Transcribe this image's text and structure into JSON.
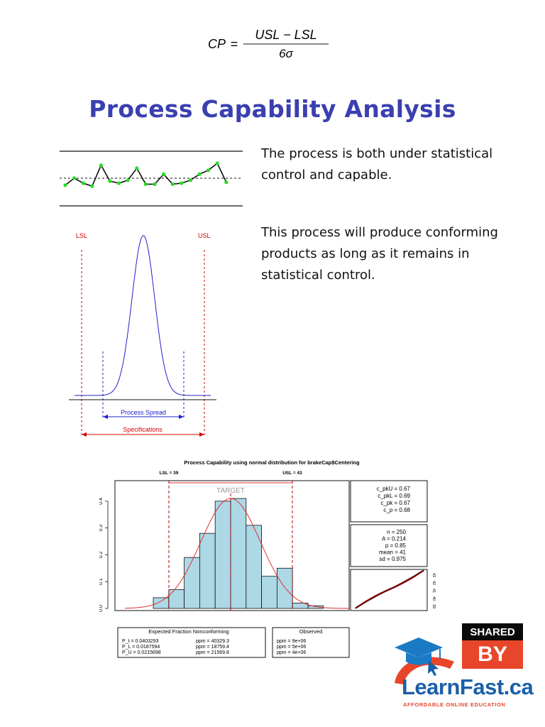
{
  "formula": {
    "lhs": "CP",
    "numerator": "USL − LSL",
    "denominator": "6σ"
  },
  "title": "Process Capability Analysis",
  "paragraphs": [
    "The process is both under statistical control and capable.",
    "This process will produce conforming products as long as it remains in statistical control."
  ],
  "control_chart": {
    "points": [
      0.35,
      0.7,
      0.45,
      0.3,
      1.35,
      0.55,
      0.45,
      0.6,
      1.2,
      0.4,
      0.4,
      0.9,
      0.4,
      0.45,
      0.6,
      0.9,
      1.1,
      1.45,
      0.5
    ]
  },
  "spec_diagram": {
    "lsl_label": "LSL",
    "usl_label": "USL",
    "spread_label": "Process Spread",
    "spec_label": "Specifications"
  },
  "capability_plot": {
    "title": "Process Capability using normal distribution for brakeCap$Centering",
    "lsl_label": "LSL = 39",
    "usl_label": "USL = 43",
    "target_label": "TARGET",
    "y_ticks": [
      "0.0",
      "0.1",
      "0.2",
      "0.3",
      "0.4"
    ],
    "indices": [
      "c_pkU = 0.67",
      "c_pkL = 0.69",
      "c_pk = 0.67",
      "c_p = 0.68"
    ],
    "stats": [
      "n = 250",
      "A = 0.214",
      "p = 0.85",
      "mean = 41",
      "sd = 0.975"
    ],
    "qq_ticks": [
      "43",
      "42",
      "41",
      "40",
      "39"
    ],
    "expected_title": "Expected Fraction Nonconforming",
    "expected_rows": [
      {
        "p": "P_t = 0.0403293",
        "ppm": "ppm = 40329.3"
      },
      {
        "p": "P_L = 0.0187594",
        "ppm": "ppm = 18759.4"
      },
      {
        "p": "P_U = 0.0215698",
        "ppm": "ppm = 21569.8"
      }
    ],
    "observed_title": "Observed",
    "observed_rows": [
      "ppm = 9e+06",
      "ppm = 5e+06",
      "ppm = 4e+06"
    ]
  },
  "chart_data": {
    "type": "bar",
    "title": "Process Capability using normal distribution for brakeCap$Centering",
    "ylim": [
      0,
      0.45
    ],
    "values": [
      0.04,
      0.07,
      0.19,
      0.28,
      0.4,
      0.41,
      0.31,
      0.12,
      0.15,
      0.02,
      0.01
    ],
    "lsl": 39,
    "usl": 43,
    "mean": 41,
    "sd": 0.975
  },
  "logo": {
    "badge_top": "SHARED",
    "badge_bottom": "BY",
    "brand": "LearnFast.ca",
    "tagline": "AFFORDABLE ONLINE EDUCATION"
  },
  "colors": {
    "title": "#3a3fb0",
    "histogram_fill": "#add8e6",
    "spec_red": "#d40000",
    "spread_blue": "#2020cc",
    "brand_blue": "#1b5fa8",
    "brand_orange": "#e8462a"
  }
}
